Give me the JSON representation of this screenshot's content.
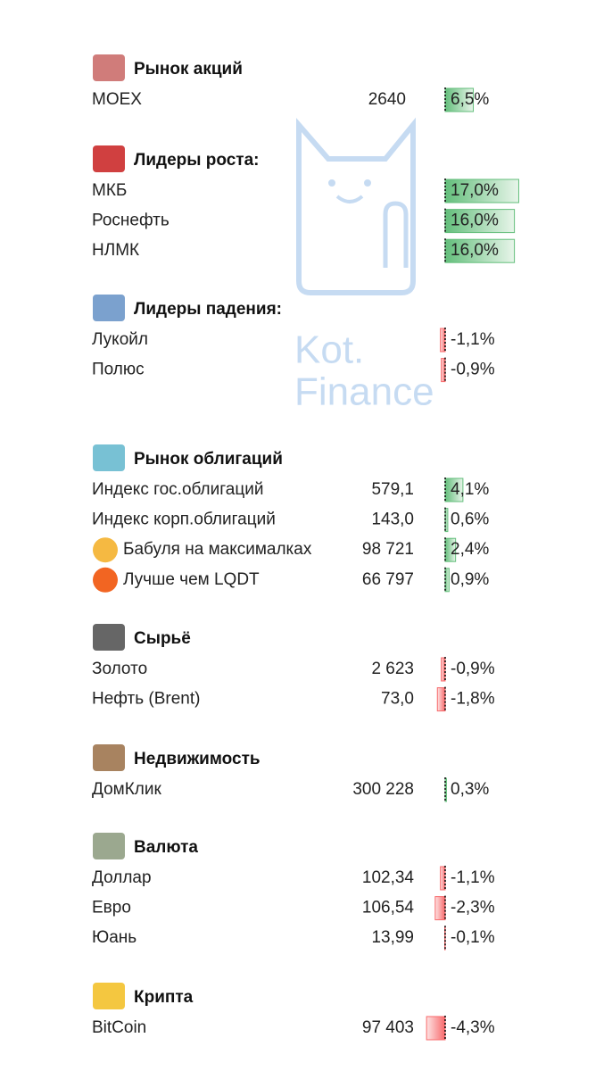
{
  "watermark": [
    "Kot.",
    "Finance"
  ],
  "sections": [
    {
      "title": "Рынок акций",
      "rows": [
        {
          "name": "MOEX",
          "value": "2640",
          "change": 6.5,
          "change_label": "6,5%"
        }
      ]
    },
    {
      "title": "Лидеры роста:",
      "rows": [
        {
          "name": "МКБ",
          "change": 17.0,
          "change_label": "17,0%"
        },
        {
          "name": "Роснефть",
          "change": 16.0,
          "change_label": "16,0%"
        },
        {
          "name": "НЛМК",
          "change": 16.0,
          "change_label": "16,0%"
        }
      ]
    },
    {
      "title": "Лидеры падения:",
      "rows": [
        {
          "name": "Лукойл",
          "change": -1.1,
          "change_label": "-1,1%"
        },
        {
          "name": "Полюс",
          "change": -0.9,
          "change_label": "-0,9%"
        }
      ]
    },
    {
      "title": "Рынок облигаций",
      "rows": [
        {
          "name": "Индекс гос.облигаций",
          "value": "579,1",
          "change": 4.1,
          "change_label": "4,1%"
        },
        {
          "name": "Индекс корп.облигаций",
          "value": "143,0",
          "change": 0.6,
          "change_label": "0,6%"
        },
        {
          "name": "Бабуля на максималках",
          "value": "98 721",
          "change": 2.4,
          "change_label": "2,4%"
        },
        {
          "name": "Лучше чем LQDT",
          "value": "66 797",
          "change": 0.9,
          "change_label": "0,9%"
        }
      ]
    },
    {
      "title": "Сырьё",
      "rows": [
        {
          "name": "Золото",
          "value": "2 623",
          "change": -0.9,
          "change_label": "-0,9%"
        },
        {
          "name": "Нефть (Brent)",
          "value": "73,0",
          "change": -1.8,
          "change_label": "-1,8%"
        }
      ]
    },
    {
      "title": "Недвижимость",
      "rows": [
        {
          "name": "ДомКлик",
          "value": "300 228",
          "change": 0.3,
          "change_label": "0,3%"
        }
      ]
    },
    {
      "title": "Валюта",
      "rows": [
        {
          "name": "Доллар",
          "value": "102,34",
          "change": -1.1,
          "change_label": "-1,1%"
        },
        {
          "name": "Евро",
          "value": "106,54",
          "change": -2.3,
          "change_label": "-2,3%"
        },
        {
          "name": "Юань",
          "value": "13,99",
          "change": -0.1,
          "change_label": "-0,1%"
        }
      ]
    },
    {
      "title": "Крипта",
      "rows": [
        {
          "name": "BitCoin",
          "value": "97 403",
          "change": -4.3,
          "change_label": "-4,3%"
        }
      ]
    }
  ]
}
